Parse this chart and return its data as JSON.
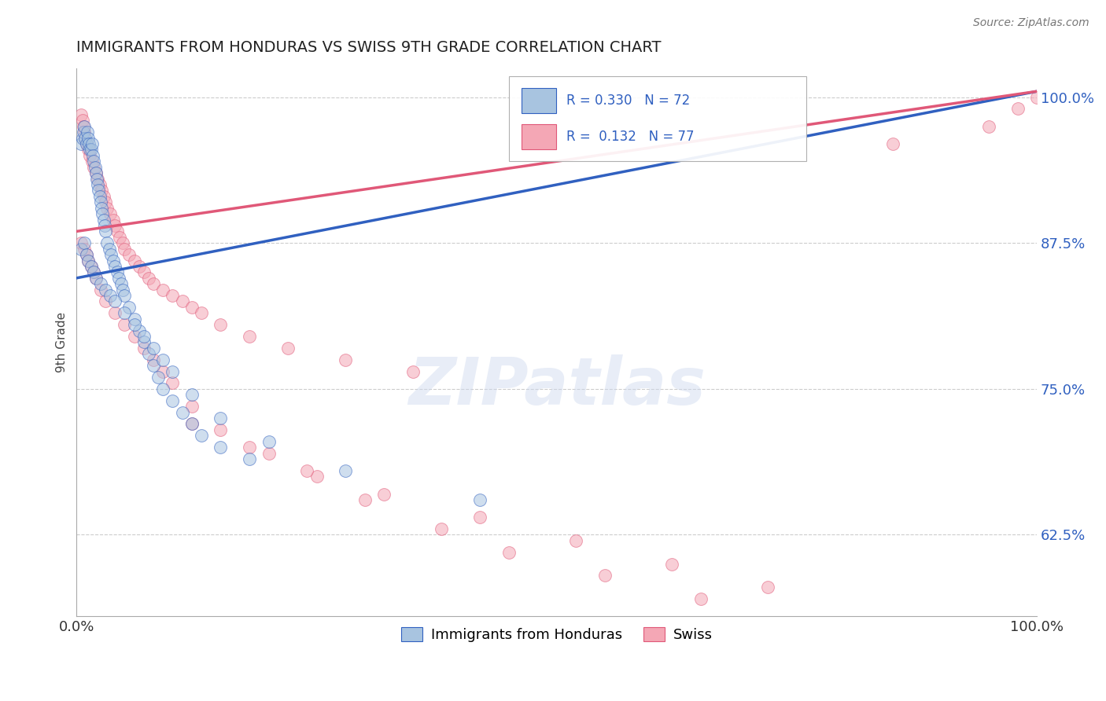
{
  "title": "IMMIGRANTS FROM HONDURAS VS SWISS 9TH GRADE CORRELATION CHART",
  "source": "Source: ZipAtlas.com",
  "ylabel": "9th Grade",
  "legend_labels": [
    "Immigrants from Honduras",
    "Swiss"
  ],
  "r_honduras": 0.33,
  "n_honduras": 72,
  "r_swiss": 0.132,
  "n_swiss": 77,
  "blue_color": "#A8C4E0",
  "pink_color": "#F4A7B5",
  "blue_line_color": "#3060C0",
  "pink_line_color": "#E05878",
  "xmin": 0.0,
  "xmax": 1.0,
  "ymin": 0.555,
  "ymax": 1.025,
  "yticks": [
    0.625,
    0.75,
    0.875,
    1.0
  ],
  "ytick_labels": [
    "62.5%",
    "75.0%",
    "87.5%",
    "100.0%"
  ],
  "xticks": [
    0.0,
    1.0
  ],
  "xtick_labels": [
    "0.0%",
    "100.0%"
  ],
  "watermark": "ZIPatlas",
  "blue_line_x0": 0.0,
  "blue_line_y0": 0.845,
  "blue_line_x1": 1.0,
  "blue_line_y1": 1.005,
  "pink_line_x0": 0.0,
  "pink_line_y0": 0.885,
  "pink_line_x1": 1.0,
  "pink_line_y1": 1.005,
  "blue_scatter_x": [
    0.005,
    0.006,
    0.007,
    0.008,
    0.009,
    0.01,
    0.011,
    0.012,
    0.013,
    0.014,
    0.015,
    0.016,
    0.017,
    0.018,
    0.019,
    0.02,
    0.021,
    0.022,
    0.023,
    0.024,
    0.025,
    0.026,
    0.027,
    0.028,
    0.029,
    0.03,
    0.032,
    0.034,
    0.036,
    0.038,
    0.04,
    0.042,
    0.044,
    0.046,
    0.048,
    0.05,
    0.055,
    0.06,
    0.065,
    0.07,
    0.075,
    0.08,
    0.085,
    0.09,
    0.1,
    0.11,
    0.12,
    0.13,
    0.15,
    0.18,
    0.005,
    0.008,
    0.01,
    0.012,
    0.015,
    0.018,
    0.02,
    0.025,
    0.03,
    0.035,
    0.04,
    0.05,
    0.06,
    0.07,
    0.08,
    0.09,
    0.1,
    0.12,
    0.15,
    0.2,
    0.28,
    0.42
  ],
  "blue_scatter_y": [
    0.96,
    0.965,
    0.97,
    0.975,
    0.965,
    0.96,
    0.97,
    0.965,
    0.96,
    0.955,
    0.955,
    0.96,
    0.95,
    0.945,
    0.94,
    0.935,
    0.93,
    0.925,
    0.92,
    0.915,
    0.91,
    0.905,
    0.9,
    0.895,
    0.89,
    0.885,
    0.875,
    0.87,
    0.865,
    0.86,
    0.855,
    0.85,
    0.845,
    0.84,
    0.835,
    0.83,
    0.82,
    0.81,
    0.8,
    0.79,
    0.78,
    0.77,
    0.76,
    0.75,
    0.74,
    0.73,
    0.72,
    0.71,
    0.7,
    0.69,
    0.87,
    0.875,
    0.865,
    0.86,
    0.855,
    0.85,
    0.845,
    0.84,
    0.835,
    0.83,
    0.825,
    0.815,
    0.805,
    0.795,
    0.785,
    0.775,
    0.765,
    0.745,
    0.725,
    0.705,
    0.68,
    0.655
  ],
  "pink_scatter_x": [
    0.005,
    0.006,
    0.007,
    0.008,
    0.009,
    0.01,
    0.012,
    0.014,
    0.016,
    0.018,
    0.02,
    0.022,
    0.024,
    0.026,
    0.028,
    0.03,
    0.032,
    0.035,
    0.038,
    0.04,
    0.042,
    0.045,
    0.048,
    0.05,
    0.055,
    0.06,
    0.065,
    0.07,
    0.075,
    0.08,
    0.09,
    0.1,
    0.11,
    0.12,
    0.13,
    0.15,
    0.18,
    0.22,
    0.28,
    0.35,
    0.005,
    0.008,
    0.01,
    0.012,
    0.015,
    0.018,
    0.02,
    0.025,
    0.03,
    0.04,
    0.05,
    0.06,
    0.07,
    0.08,
    0.09,
    0.1,
    0.12,
    0.15,
    0.2,
    0.25,
    0.3,
    0.38,
    0.45,
    0.55,
    0.65,
    0.12,
    0.18,
    0.24,
    0.32,
    0.42,
    0.52,
    0.62,
    0.72,
    0.85,
    0.95,
    0.98,
    1.0
  ],
  "pink_scatter_y": [
    0.985,
    0.98,
    0.975,
    0.97,
    0.965,
    0.96,
    0.955,
    0.95,
    0.945,
    0.94,
    0.935,
    0.93,
    0.925,
    0.92,
    0.915,
    0.91,
    0.905,
    0.9,
    0.895,
    0.89,
    0.885,
    0.88,
    0.875,
    0.87,
    0.865,
    0.86,
    0.855,
    0.85,
    0.845,
    0.84,
    0.835,
    0.83,
    0.825,
    0.82,
    0.815,
    0.805,
    0.795,
    0.785,
    0.775,
    0.765,
    0.875,
    0.87,
    0.865,
    0.86,
    0.855,
    0.85,
    0.845,
    0.835,
    0.825,
    0.815,
    0.805,
    0.795,
    0.785,
    0.775,
    0.765,
    0.755,
    0.735,
    0.715,
    0.695,
    0.675,
    0.655,
    0.63,
    0.61,
    0.59,
    0.57,
    0.72,
    0.7,
    0.68,
    0.66,
    0.64,
    0.62,
    0.6,
    0.58,
    0.96,
    0.975,
    0.99,
    1.0
  ]
}
